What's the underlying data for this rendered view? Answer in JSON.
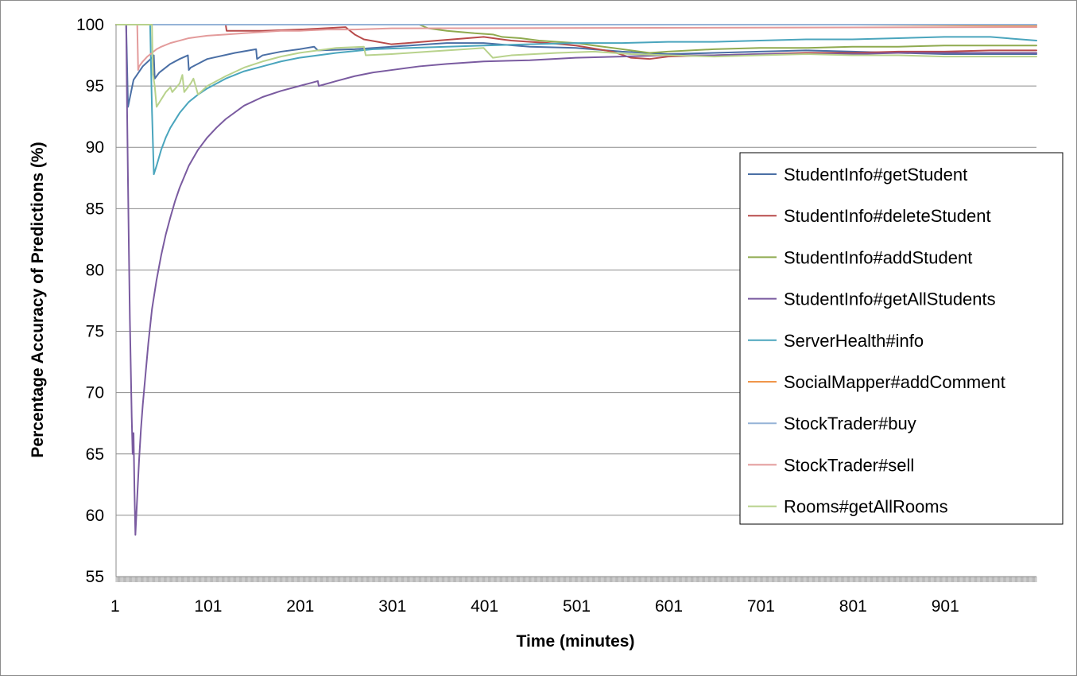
{
  "chart_data": {
    "type": "line",
    "title": "",
    "xlabel": "Time (minutes)",
    "ylabel": "Percentage Accuracy of Predictions (%)",
    "xlim": [
      1,
      1000
    ],
    "ylim": [
      55,
      100
    ],
    "x_ticks": [
      "1",
      "101",
      "201",
      "301",
      "401",
      "501",
      "601",
      "701",
      "801",
      "901"
    ],
    "y_ticks": [
      "55",
      "60",
      "65",
      "70",
      "75",
      "80",
      "85",
      "90",
      "95",
      "100"
    ],
    "grid": "horizontal",
    "legend_position": "right",
    "series": [
      {
        "name": "StudentInfo#getStudent",
        "color": "#4a6fa5",
        "x": [
          1,
          12,
          14,
          20,
          30,
          40,
          42,
          43,
          48,
          60,
          70,
          79,
          80,
          82,
          100,
          130,
          153,
          154,
          160,
          180,
          200,
          216,
          220,
          260,
          300,
          320,
          340,
          360,
          400,
          450,
          500,
          550,
          600,
          650,
          700,
          750,
          800,
          850,
          900,
          950,
          1000
        ],
        "y": [
          100,
          100,
          93.3,
          95.5,
          96.6,
          97.3,
          97.5,
          95.6,
          96.1,
          96.8,
          97.2,
          97.5,
          96.3,
          96.5,
          97.2,
          97.7,
          98.0,
          97.2,
          97.5,
          97.8,
          98.0,
          98.2,
          97.9,
          98.0,
          98.2,
          98.3,
          98.4,
          98.5,
          98.5,
          98.2,
          98.1,
          97.8,
          97.6,
          97.7,
          97.8,
          97.9,
          97.8,
          97.7,
          97.6,
          97.6,
          97.6
        ]
      },
      {
        "name": "StudentInfo#deleteStudent",
        "color": "#b84b4b",
        "x": [
          1,
          120,
          121,
          160,
          200,
          250,
          260,
          270,
          300,
          350,
          400,
          430,
          470,
          500,
          540,
          560,
          580,
          600,
          650,
          700,
          750,
          800,
          850,
          900,
          950,
          1000
        ],
        "y": [
          100,
          100,
          99.5,
          99.5,
          99.6,
          99.8,
          99.2,
          98.8,
          98.4,
          98.7,
          99.0,
          98.7,
          98.5,
          98.3,
          97.8,
          97.3,
          97.2,
          97.4,
          97.5,
          97.6,
          97.7,
          97.7,
          97.8,
          97.8,
          97.9,
          97.9
        ]
      },
      {
        "name": "StudentInfo#addStudent",
        "color": "#8faa4f",
        "x": [
          1,
          330,
          340,
          360,
          390,
          410,
          420,
          440,
          460,
          480,
          500,
          520,
          540,
          560,
          580,
          600,
          650,
          700,
          750,
          800,
          850,
          900,
          950,
          1000
        ],
        "y": [
          100,
          100,
          99.7,
          99.5,
          99.3,
          99.2,
          99.0,
          98.9,
          98.7,
          98.6,
          98.5,
          98.3,
          98.1,
          97.9,
          97.7,
          97.8,
          98.0,
          98.1,
          98.1,
          98.2,
          98.2,
          98.3,
          98.3,
          98.3
        ]
      },
      {
        "name": "StudentInfo#getAllStudents",
        "color": "#7a5ba0",
        "x": [
          1,
          12,
          13,
          14,
          15,
          16,
          17,
          18,
          19,
          20,
          21,
          22,
          24,
          26,
          28,
          30,
          33,
          36,
          40,
          45,
          50,
          55,
          60,
          65,
          70,
          80,
          90,
          100,
          110,
          120,
          140,
          160,
          180,
          200,
          210,
          220,
          221,
          240,
          260,
          280,
          300,
          330,
          360,
          400,
          450,
          500,
          550,
          600,
          650,
          700,
          750,
          800,
          850,
          900,
          950,
          1000
        ],
        "y": [
          100,
          100,
          93,
          87,
          81.3,
          76,
          72,
          68,
          65,
          66.7,
          62,
          58.4,
          61.5,
          64.5,
          67,
          69,
          71.5,
          74,
          76.8,
          79.2,
          81.2,
          82.9,
          84.3,
          85.6,
          86.7,
          88.5,
          89.8,
          90.8,
          91.6,
          92.3,
          93.4,
          94.1,
          94.6,
          95.0,
          95.2,
          95.4,
          95.0,
          95.4,
          95.8,
          96.1,
          96.3,
          96.6,
          96.8,
          97.0,
          97.1,
          97.3,
          97.4,
          97.5,
          97.5,
          97.6,
          97.6,
          97.6,
          97.7,
          97.7,
          97.7,
          97.7
        ]
      },
      {
        "name": "ServerHealth#info",
        "color": "#4aa5bd",
        "x": [
          1,
          38,
          40,
          42,
          45,
          50,
          55,
          60,
          70,
          80,
          90,
          100,
          120,
          140,
          160,
          180,
          200,
          240,
          280,
          320,
          360,
          400,
          450,
          500,
          550,
          600,
          650,
          700,
          750,
          800,
          850,
          900,
          950,
          1000
        ],
        "y": [
          100,
          100,
          93,
          87.8,
          88.5,
          89.8,
          90.8,
          91.6,
          92.8,
          93.7,
          94.3,
          94.8,
          95.6,
          96.2,
          96.6,
          97.0,
          97.3,
          97.7,
          98.0,
          98.1,
          98.2,
          98.3,
          98.4,
          98.5,
          98.5,
          98.6,
          98.6,
          98.7,
          98.8,
          98.8,
          98.9,
          99.0,
          99.0,
          98.7
        ]
      },
      {
        "name": "SocialMapper#addComment",
        "color": "#f0964a",
        "x": [
          1,
          400,
          600,
          800,
          1000
        ],
        "y": [
          100,
          100,
          100,
          100,
          99.9
        ]
      },
      {
        "name": "StockTrader#buy",
        "color": "#95b3d7",
        "x": [
          1,
          250,
          500,
          750,
          1000
        ],
        "y": [
          100,
          100,
          100,
          100,
          100
        ]
      },
      {
        "name": "StockTrader#sell",
        "color": "#e39b9b",
        "x": [
          1,
          24,
          25,
          26,
          30,
          35,
          40,
          45,
          50,
          60,
          70,
          80,
          90,
          100,
          120,
          140,
          160,
          180,
          200,
          230,
          260,
          300,
          1000
        ],
        "y": [
          100,
          100,
          96.3,
          96.6,
          97.0,
          97.4,
          97.7,
          98.0,
          98.2,
          98.5,
          98.7,
          98.9,
          99.0,
          99.1,
          99.2,
          99.3,
          99.4,
          99.5,
          99.5,
          99.6,
          99.6,
          99.7,
          99.8
        ]
      },
      {
        "name": "Rooms#getAllRooms",
        "color": "#b8d28c",
        "x": [
          1,
          40,
          41,
          43,
          45,
          55,
          60,
          62,
          70,
          73,
          75,
          82,
          85,
          90,
          100,
          120,
          140,
          160,
          180,
          200,
          240,
          270,
          272,
          300,
          340,
          380,
          400,
          410,
          430,
          480,
          520,
          560,
          600,
          650,
          700,
          750,
          800,
          850,
          900,
          950,
          1000
        ],
        "y": [
          100,
          100,
          96,
          95,
          93.3,
          94.5,
          94.9,
          94.5,
          95.2,
          95.9,
          94.5,
          95.2,
          95.6,
          94.3,
          95.0,
          95.8,
          96.5,
          97.0,
          97.4,
          97.7,
          98.1,
          98.2,
          97.5,
          97.6,
          97.8,
          98.0,
          98.1,
          97.3,
          97.5,
          97.7,
          97.8,
          97.6,
          97.5,
          97.4,
          97.5,
          97.6,
          97.5,
          97.5,
          97.4,
          97.4,
          97.4
        ]
      }
    ]
  }
}
